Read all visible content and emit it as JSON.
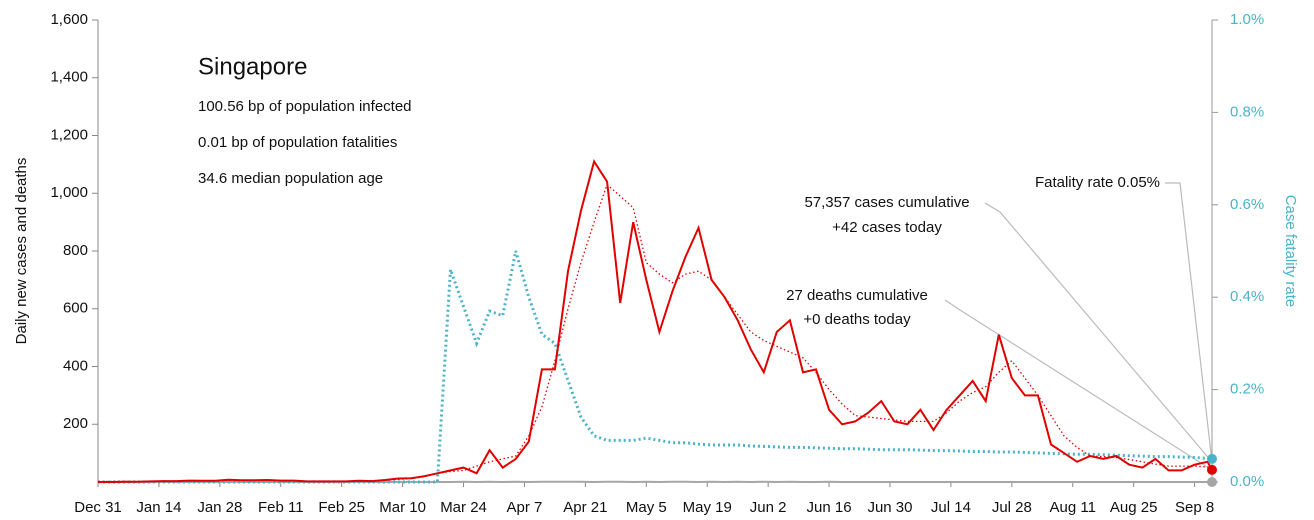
{
  "chart_data": {
    "type": "line",
    "title": "Singapore",
    "subtitle_lines": [
      "100.56 bp of population infected",
      "0.01 bp of population fatalities",
      "34.6 median population age"
    ],
    "ylabel": "Daily new cases and deaths",
    "y2label": "Case fatality rate",
    "annotations": [
      "Fatality rate 0.05%",
      "57,357 cases cumulative",
      "+42 cases today",
      "27 deaths cumulative",
      "+0 deaths today"
    ],
    "x": [
      0,
      3,
      6,
      9,
      12,
      15,
      18,
      21,
      24,
      27,
      30,
      33,
      36,
      39,
      42,
      45,
      48,
      51,
      54,
      57,
      60,
      63,
      66,
      69,
      72,
      75,
      78,
      81,
      84,
      87,
      90,
      93,
      96,
      99,
      102,
      105,
      108,
      111,
      114,
      117,
      120,
      123,
      126,
      129,
      132,
      135,
      138,
      141,
      144,
      147,
      150,
      153,
      156,
      159,
      162,
      165,
      168,
      171,
      174,
      177,
      180,
      183,
      186,
      189,
      192,
      195,
      198,
      201,
      204,
      207,
      210,
      213,
      216,
      219,
      222,
      225,
      228,
      231,
      234,
      237,
      240,
      243,
      246,
      249,
      252,
      255,
      256
    ],
    "xlim": [
      0,
      256
    ],
    "xticks": [
      {
        "value": 0,
        "label": "Dec 31"
      },
      {
        "value": 14,
        "label": "Jan 14"
      },
      {
        "value": 28,
        "label": "Jan 28"
      },
      {
        "value": 42,
        "label": "Feb 11"
      },
      {
        "value": 56,
        "label": "Feb 25"
      },
      {
        "value": 70,
        "label": "Mar 10"
      },
      {
        "value": 84,
        "label": "Mar 24"
      },
      {
        "value": 98,
        "label": "Apr 7"
      },
      {
        "value": 112,
        "label": "Apr 21"
      },
      {
        "value": 126,
        "label": "May 5"
      },
      {
        "value": 140,
        "label": "May 19"
      },
      {
        "value": 154,
        "label": "Jun 2"
      },
      {
        "value": 168,
        "label": "Jun 16"
      },
      {
        "value": 182,
        "label": "Jun 30"
      },
      {
        "value": 196,
        "label": "Jul 14"
      },
      {
        "value": 210,
        "label": "Jul 28"
      },
      {
        "value": 224,
        "label": "Aug 11"
      },
      {
        "value": 238,
        "label": "Aug 25"
      },
      {
        "value": 252,
        "label": "Sep 8"
      }
    ],
    "ylim": [
      0,
      1600
    ],
    "yticks": [
      {
        "value": 200,
        "label": "200"
      },
      {
        "value": 400,
        "label": "400"
      },
      {
        "value": 600,
        "label": "600"
      },
      {
        "value": 800,
        "label": "800"
      },
      {
        "value": 1000,
        "label": "1,000"
      },
      {
        "value": 1200,
        "label": "1,200"
      },
      {
        "value": 1400,
        "label": "1,400"
      },
      {
        "value": 1600,
        "label": "1,600"
      }
    ],
    "y2lim": [
      0,
      1
    ],
    "y2ticks": [
      {
        "value": 0,
        "label": "0.0%"
      },
      {
        "value": 0.2,
        "label": "0.2%"
      },
      {
        "value": 0.4,
        "label": "0.4%"
      },
      {
        "value": 0.6,
        "label": "0.6%"
      },
      {
        "value": 0.8,
        "label": "0.8%"
      },
      {
        "value": 1,
        "label": "1.0%"
      }
    ],
    "series": [
      {
        "color": "#e00000",
        "style": "solid",
        "width": 2,
        "values": [
          0,
          0,
          1,
          1,
          2,
          3,
          3,
          5,
          4,
          4,
          8,
          6,
          6,
          7,
          5,
          5,
          2,
          2,
          2,
          2,
          4,
          3,
          7,
          12,
          13,
          20,
          30,
          40,
          50,
          30,
          110,
          50,
          80,
          140,
          390,
          390,
          730,
          940,
          1110,
          1040,
          620,
          900,
          700,
          520,
          660,
          780,
          880,
          700,
          640,
          560,
          460,
          380,
          520,
          560,
          380,
          390,
          250,
          200,
          210,
          240,
          280,
          210,
          200,
          250,
          180,
          250,
          300,
          350,
          280,
          510,
          360,
          300,
          300,
          130,
          100,
          70,
          90,
          80,
          90,
          60,
          50,
          80,
          40,
          40,
          60,
          70,
          42
        ]
      },
      {
        "color": "#e00000",
        "style": "dotted",
        "width": 1.3,
        "values": [
          2,
          2,
          2,
          2,
          2,
          3,
          3,
          3,
          4,
          4,
          5,
          5,
          5,
          5,
          5,
          4,
          3,
          3,
          3,
          3,
          3,
          4,
          6,
          9,
          12,
          18,
          30,
          36,
          40,
          55,
          70,
          80,
          90,
          160,
          260,
          420,
          600,
          760,
          900,
          1030,
          990,
          950,
          760,
          720,
          690,
          720,
          730,
          700,
          640,
          580,
          520,
          490,
          470,
          450,
          430,
          380,
          320,
          270,
          230,
          225,
          220,
          215,
          210,
          210,
          210,
          240,
          280,
          310,
          330,
          380,
          420,
          360,
          300,
          230,
          160,
          120,
          90,
          88,
          85,
          78,
          70,
          62,
          55,
          55,
          55,
          52,
          50
        ]
      },
      {
        "color": "#a6a6a6",
        "style": "solid",
        "width": 2,
        "values": [
          0,
          0,
          0,
          0,
          0,
          0,
          0,
          0,
          0,
          0,
          0,
          0,
          0,
          0,
          0,
          0,
          0,
          0,
          0,
          0,
          0,
          0,
          0,
          0,
          0,
          0,
          0,
          0,
          1,
          0,
          1,
          0,
          1,
          0,
          1,
          1,
          1,
          1,
          0,
          1,
          1,
          0,
          1,
          0,
          1,
          1,
          0,
          1,
          0,
          1,
          0,
          1,
          0,
          1,
          0,
          0,
          1,
          0,
          0,
          0,
          0,
          0,
          0,
          0,
          0,
          0,
          0,
          0,
          0,
          0,
          0,
          0,
          0,
          0,
          0,
          0,
          0,
          0,
          0,
          0,
          0,
          0,
          0,
          0,
          0,
          0,
          0
        ]
      },
      {
        "color": "#4bb3c8",
        "style": "dotted",
        "width": 3,
        "axis": "y2",
        "values": [
          0,
          0,
          0,
          0,
          0,
          0,
          0,
          0,
          0,
          0,
          0,
          0,
          0,
          0,
          0,
          0,
          0,
          0,
          0,
          0,
          0,
          0,
          0,
          0,
          0,
          0,
          0,
          0.46,
          0.38,
          0.3,
          0.37,
          0.36,
          0.5,
          0.4,
          0.32,
          0.3,
          0.22,
          0.14,
          0.1,
          0.09,
          0.09,
          0.09,
          0.095,
          0.09,
          0.085,
          0.085,
          0.082,
          0.08,
          0.08,
          0.08,
          0.078,
          0.077,
          0.076,
          0.075,
          0.075,
          0.074,
          0.073,
          0.072,
          0.072,
          0.071,
          0.07,
          0.07,
          0.07,
          0.069,
          0.068,
          0.068,
          0.067,
          0.066,
          0.066,
          0.065,
          0.065,
          0.064,
          0.063,
          0.062,
          0.061,
          0.06,
          0.06,
          0.059,
          0.058,
          0.057,
          0.056,
          0.055,
          0.055,
          0.054,
          0.053,
          0.051,
          0.05
        ]
      }
    ]
  }
}
